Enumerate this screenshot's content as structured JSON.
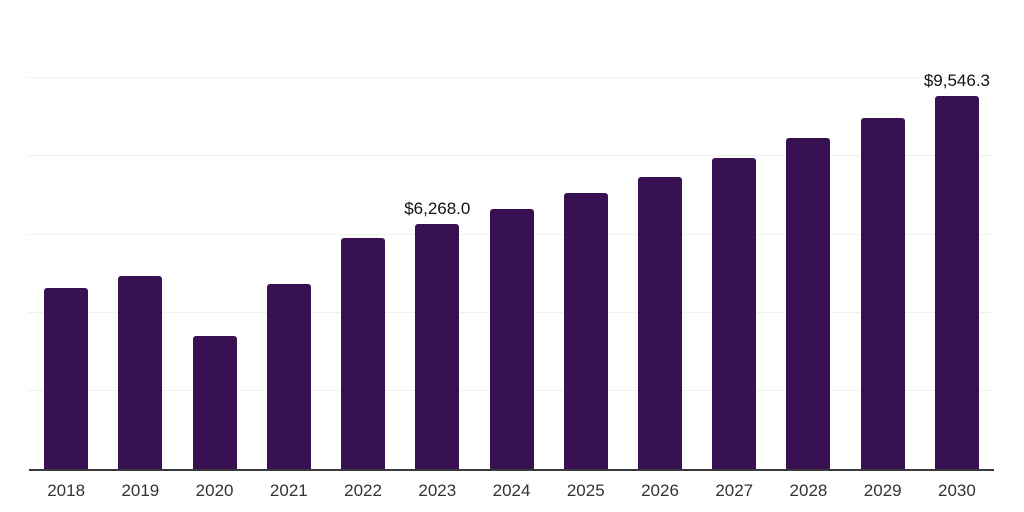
{
  "chart_data": {
    "type": "bar",
    "title": "",
    "xlabel": "",
    "ylabel": "",
    "categories": [
      "2018",
      "2019",
      "2020",
      "2021",
      "2022",
      "2023",
      "2024",
      "2025",
      "2026",
      "2027",
      "2028",
      "2029",
      "2030"
    ],
    "values": [
      4640,
      4940,
      3400,
      4730,
      5910,
      6268.0,
      6650,
      7060,
      7470,
      7970,
      8470,
      8980,
      9546.3
    ],
    "bar_labels": [
      "",
      "",
      "",
      "",
      "",
      "$6,268.0",
      "",
      "",
      "",
      "",
      "",
      "",
      "$9,546.3"
    ],
    "ylim": [
      0,
      12000
    ],
    "gridline_step": 2000,
    "grid": "horizontal",
    "legend": "none",
    "y_axis_tick_labels": "none",
    "colors": {
      "bar": "#371151",
      "gridline": "#f0f0f0",
      "axis_line": "#3a3a3a",
      "tick_label": "#333333",
      "value_label": "#111111",
      "background": "#ffffff"
    }
  }
}
